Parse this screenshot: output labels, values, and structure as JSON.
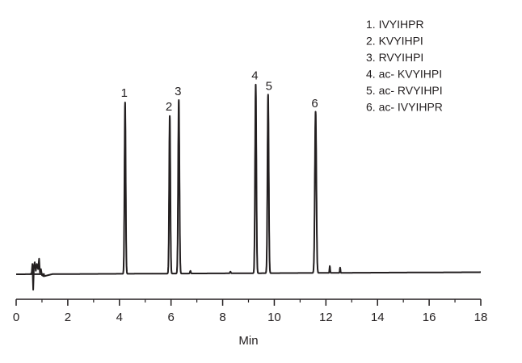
{
  "chart_data": {
    "type": "line",
    "xlabel": "Min",
    "ylabel": "",
    "xlim": [
      0,
      18
    ],
    "x_ticks": [
      0,
      2,
      4,
      6,
      8,
      10,
      12,
      14,
      16,
      18
    ],
    "grid": false,
    "legend_position": "top-right",
    "line_color": "#231f20",
    "baseline": {
      "start": 0.0,
      "end": 18.0
    },
    "injection_artifact_time": 0.8,
    "series": [
      {
        "values": [
          {
            "x": 4.22,
            "y": 1.0,
            "width": 0.055
          },
          {
            "x": 5.95,
            "y": 0.92,
            "width": 0.055
          },
          {
            "x": 6.3,
            "y": 1.01,
            "width": 0.06
          },
          {
            "x": 9.28,
            "y": 1.1,
            "width": 0.06
          },
          {
            "x": 9.76,
            "y": 1.04,
            "width": 0.06
          },
          {
            "x": 11.6,
            "y": 0.94,
            "width": 0.07
          }
        ]
      }
    ],
    "peak_labels": [
      {
        "label": "1",
        "x": 4.22
      },
      {
        "label": "2",
        "x": 5.95
      },
      {
        "label": "3",
        "x": 6.3
      },
      {
        "label": "4",
        "x": 9.28
      },
      {
        "label": "5",
        "x": 9.76
      },
      {
        "label": "6",
        "x": 11.6
      }
    ],
    "legend": [
      "1. IVYIHPR",
      "2. KVYIHPI",
      "3. RVYIHPI",
      "4. ac- KVYIHPI",
      "5. ac- RVYIHPI",
      "6. ac- IVYIHPR"
    ]
  }
}
